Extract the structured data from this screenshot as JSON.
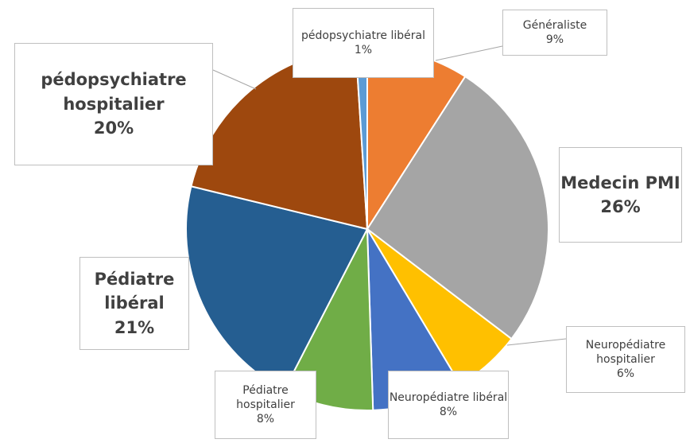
{
  "chart_data": {
    "type": "pie",
    "categories": [
      "Généraliste",
      "Medecin PMI",
      "Neuropédiatre hospitalier",
      "Neuropédiatre libéral",
      "Pédiatre hospitalier",
      "Pédiatre libéral",
      "pédopsychiatre hospitalier",
      "pédopsychiatre libéral"
    ],
    "values": [
      9,
      26,
      6,
      8,
      8,
      21,
      20,
      1
    ],
    "value_labels": [
      "9%",
      "26%",
      "6%",
      "8%",
      "8%",
      "21%",
      "20%",
      "1%"
    ],
    "colors": [
      "#ED7D31",
      "#A5A5A5",
      "#FFC000",
      "#4472C4",
      "#70AD47",
      "#255E91",
      "#9E480E",
      "#5B9BD5"
    ]
  }
}
